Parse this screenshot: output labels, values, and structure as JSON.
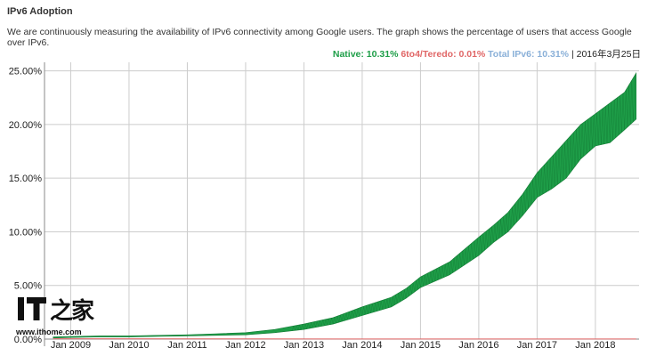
{
  "page": {
    "title": "IPv6 Adoption",
    "description": "We are continuously measuring the availability of IPv6 connectivity among Google users. The graph shows the percentage of users that access Google over IPv6."
  },
  "legend": {
    "native": "Native: 10.31%",
    "teredo": "6to4/Teredo: 0.01%",
    "total": "Total IPv6: 10.31%",
    "separator": "|",
    "date": "2016年3月25日"
  },
  "colors": {
    "native": "#1e9e48",
    "native_dark": "#127a34",
    "teredo": "#e06666",
    "total": "#8ab0d8",
    "grid": "#cccccc"
  },
  "watermark": {
    "logo_text": "IT之家",
    "url": "www.ithome.com"
  },
  "chart_data": {
    "type": "area",
    "title": "IPv6 Adoption",
    "xlabel": "",
    "ylabel": "",
    "ylim": [
      0,
      25
    ],
    "x_range": [
      2008.55,
      2018.75
    ],
    "y_ticks": [
      "0.00%",
      "5.00%",
      "10.00%",
      "15.00%",
      "20.00%",
      "25.00%"
    ],
    "y_tick_values": [
      0,
      5,
      10,
      15,
      20,
      25
    ],
    "x_ticks": [
      "Jan 2009",
      "Jan 2010",
      "Jan 2011",
      "Jan 2012",
      "Jan 2013",
      "Jan 2014",
      "Jan 2015",
      "Jan 2016",
      "Jan 2017",
      "Jan 2018"
    ],
    "x_tick_values": [
      2009,
      2010,
      2011,
      2012,
      2013,
      2014,
      2015,
      2016,
      2017,
      2018
    ],
    "grid": true,
    "legend_position": "top-right",
    "series": [
      {
        "name": "Native",
        "x": [
          2008.7,
          2009.0,
          2009.5,
          2010.0,
          2010.5,
          2011.0,
          2011.5,
          2012.0,
          2012.5,
          2013.0,
          2013.5,
          2014.0,
          2014.5,
          2014.75,
          2015.0,
          2015.5,
          2016.0,
          2016.25,
          2016.5,
          2016.75,
          2017.0,
          2017.25,
          2017.5,
          2017.75,
          2018.0,
          2018.25,
          2018.5,
          2018.7
        ],
        "low": [
          0.1,
          0.15,
          0.2,
          0.2,
          0.25,
          0.3,
          0.35,
          0.4,
          0.6,
          0.9,
          1.4,
          2.2,
          3.0,
          3.8,
          4.8,
          6.0,
          7.8,
          9.0,
          10.0,
          11.5,
          13.2,
          14.0,
          15.0,
          16.8,
          18.0,
          18.3,
          19.5,
          20.5
        ],
        "high": [
          0.2,
          0.25,
          0.3,
          0.3,
          0.35,
          0.4,
          0.5,
          0.6,
          0.9,
          1.4,
          2.0,
          3.0,
          3.9,
          4.7,
          5.8,
          7.2,
          9.5,
          10.6,
          11.8,
          13.5,
          15.5,
          17.0,
          18.5,
          20.0,
          21.0,
          22.0,
          23.0,
          24.8
        ]
      },
      {
        "name": "6to4/Teredo",
        "x": [
          2008.7,
          2012.0,
          2016.0,
          2018.7
        ],
        "values": [
          0.03,
          0.02,
          0.01,
          0.01
        ]
      }
    ]
  }
}
